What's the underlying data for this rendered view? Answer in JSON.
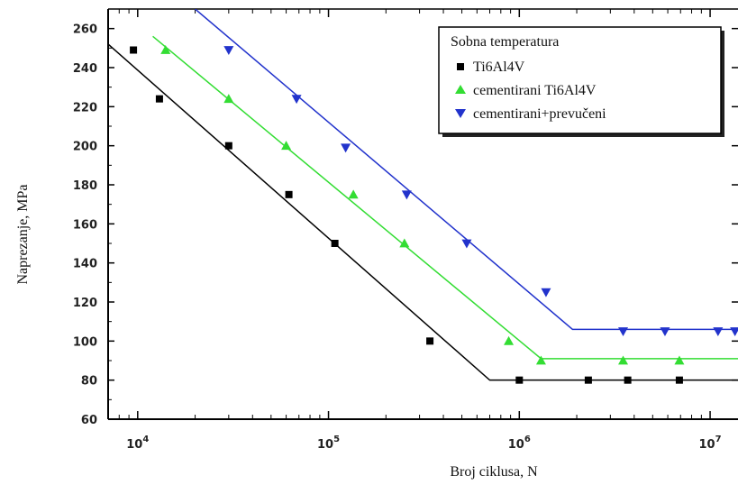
{
  "chart_data": {
    "type": "line",
    "xlabel": "Broj ciklusa, N",
    "ylabel": "Naprezanje, MPa",
    "x_scale": "log",
    "xlim": [
      7000,
      14000000
    ],
    "ylim": [
      60,
      270
    ],
    "yticks": [
      60,
      80,
      100,
      120,
      140,
      160,
      180,
      200,
      220,
      240,
      260
    ],
    "xticks": [
      {
        "base": "10",
        "exp": "4",
        "value": 10000
      },
      {
        "base": "10",
        "exp": "5",
        "value": 100000
      },
      {
        "base": "10",
        "exp": "6",
        "value": 1000000
      },
      {
        "base": "10",
        "exp": "7",
        "value": 10000000
      }
    ],
    "grid": false,
    "legend": {
      "title": "Sobna temperatura",
      "placement": "top-right"
    },
    "series": [
      {
        "name": "Ti6Al4V",
        "color": "#000000",
        "marker": "square",
        "points": [
          [
            9500,
            249
          ],
          [
            13000,
            224
          ],
          [
            30000,
            200
          ],
          [
            62000,
            175
          ],
          [
            108000,
            150
          ],
          [
            340000,
            100
          ],
          [
            1000000,
            80
          ],
          [
            2300000,
            80
          ],
          [
            3700000,
            80
          ],
          [
            6900000,
            80
          ]
        ],
        "fit": [
          [
            7000,
            252
          ],
          [
            700000,
            80
          ],
          [
            14000000,
            80
          ]
        ]
      },
      {
        "name": "cementirani Ti6Al4V",
        "color": "#33dd33",
        "marker": "triangle-up",
        "points": [
          [
            14000,
            249
          ],
          [
            30000,
            224
          ],
          [
            60000,
            200
          ],
          [
            135000,
            175
          ],
          [
            250000,
            150
          ],
          [
            880000,
            100
          ],
          [
            1300000,
            90
          ],
          [
            3500000,
            90
          ],
          [
            6900000,
            90
          ]
        ],
        "fit": [
          [
            12000,
            256
          ],
          [
            1300000,
            91
          ],
          [
            14000000,
            91
          ]
        ]
      },
      {
        "name": "cementirani+prevučeni",
        "color": "#2233cc",
        "marker": "triangle-down",
        "points": [
          [
            30000,
            249
          ],
          [
            68000,
            224
          ],
          [
            123000,
            199
          ],
          [
            257000,
            175
          ],
          [
            530000,
            150
          ],
          [
            1380000,
            125
          ],
          [
            3500000,
            105
          ],
          [
            5800000,
            105
          ],
          [
            11000000,
            105
          ],
          [
            13500000,
            105
          ]
        ],
        "fit": [
          [
            20000,
            270
          ],
          [
            1900000,
            106
          ],
          [
            14000000,
            106
          ]
        ]
      }
    ]
  }
}
